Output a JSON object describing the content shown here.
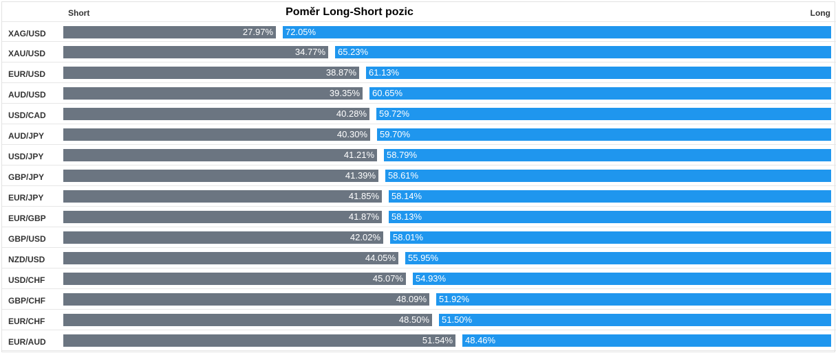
{
  "header": {
    "short_label": "Short",
    "long_label": "Long",
    "title": "Poměr Long-Short pozic"
  },
  "colors": {
    "short": "#6b7581",
    "long": "#1f96ee"
  },
  "chart_data": {
    "type": "bar",
    "title": "Poměr Long-Short pozic",
    "orientation": "horizontal-stacked",
    "categories": [
      "XAG/USD",
      "XAU/USD",
      "EUR/USD",
      "AUD/USD",
      "USD/CAD",
      "AUD/JPY",
      "USD/JPY",
      "GBP/JPY",
      "EUR/JPY",
      "EUR/GBP",
      "GBP/USD",
      "NZD/USD",
      "USD/CHF",
      "GBP/CHF",
      "EUR/CHF",
      "EUR/AUD"
    ],
    "series": [
      {
        "name": "Short",
        "values": [
          27.97,
          34.77,
          38.87,
          39.35,
          40.28,
          40.3,
          41.21,
          41.39,
          41.85,
          41.87,
          42.02,
          44.05,
          45.07,
          48.09,
          48.5,
          51.54
        ],
        "labels": [
          "27.97%",
          "34.77%",
          "38.87%",
          "39.35%",
          "40.28%",
          "40.30%",
          "41.21%",
          "41.39%",
          "41.85%",
          "41.87%",
          "42.02%",
          "44.05%",
          "45.07%",
          "48.09%",
          "48.50%",
          "51.54%"
        ]
      },
      {
        "name": "Long",
        "values": [
          72.05,
          65.23,
          61.13,
          60.65,
          59.72,
          59.7,
          58.79,
          58.61,
          58.14,
          58.13,
          58.01,
          55.95,
          54.93,
          51.92,
          51.5,
          48.46
        ],
        "labels": [
          "72.05%",
          "65.23%",
          "61.13%",
          "60.65%",
          "59.72%",
          "59.70%",
          "58.79%",
          "58.61%",
          "58.14%",
          "58.13%",
          "58.01%",
          "55.95%",
          "54.93%",
          "51.92%",
          "51.50%",
          "48.46%"
        ]
      }
    ],
    "xlim": [
      0,
      100
    ],
    "grid": false
  }
}
